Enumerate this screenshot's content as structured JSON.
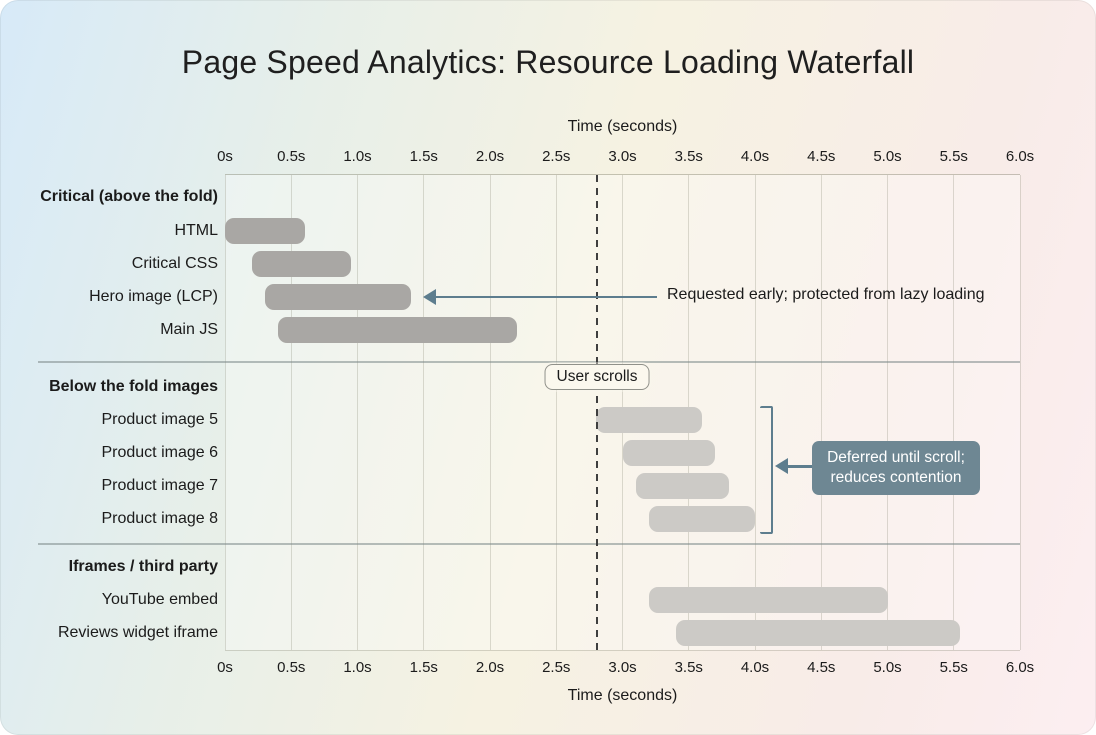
{
  "title": "Page Speed Analytics: Resource Loading Waterfall",
  "axis": {
    "label": "Time (seconds)",
    "min": 0,
    "max": 6,
    "step": 0.5,
    "ticks": [
      "0s",
      "0.5s",
      "1.0s",
      "1.5s",
      "2.0s",
      "2.5s",
      "3.0s",
      "3.5s",
      "4.0s",
      "4.5s",
      "5.0s",
      "5.5s",
      "6.0s"
    ]
  },
  "annotations": {
    "hero": "Requested early; protected from lazy loading",
    "user_scrolls": "User scrolls",
    "deferred_line1": "Deferred until scroll;",
    "deferred_line2": "reduces contention",
    "scroll_time_s": 2.8
  },
  "colors": {
    "critical_bar": "#a9a7a4",
    "deferred_bar": "#cccac6",
    "accent": "#5d7d8e",
    "callout_bg": "#6e8793",
    "dashed_line": "#3f3f3f"
  },
  "chart_data": {
    "type": "bar",
    "subtype": "gantt-waterfall",
    "title": "Page Speed Analytics: Resource Loading Waterfall",
    "xlabel": "Time (seconds)",
    "xlim": [
      0,
      6
    ],
    "grid": true,
    "sections": [
      {
        "label": "Critical (above the fold)",
        "bar_color": "#a9a7a4",
        "rows": [
          {
            "label": "HTML",
            "start": 0.0,
            "end": 0.6
          },
          {
            "label": "Critical CSS",
            "start": 0.2,
            "end": 0.95
          },
          {
            "label": "Hero image (LCP)",
            "start": 0.3,
            "end": 1.4
          },
          {
            "label": "Main JS",
            "start": 0.4,
            "end": 2.2
          }
        ]
      },
      {
        "label": "Below the fold images",
        "bar_color": "#cccac6",
        "rows": [
          {
            "label": "Product image 5",
            "start": 2.8,
            "end": 3.6
          },
          {
            "label": "Product image 6",
            "start": 3.0,
            "end": 3.7
          },
          {
            "label": "Product image 7",
            "start": 3.1,
            "end": 3.8
          },
          {
            "label": "Product image 8",
            "start": 3.2,
            "end": 4.0
          }
        ]
      },
      {
        "label": "Iframes / third party",
        "bar_color": "#cccac6",
        "rows": [
          {
            "label": "YouTube embed",
            "start": 3.2,
            "end": 5.0
          },
          {
            "label": "Reviews widget iframe",
            "start": 3.4,
            "end": 5.55
          }
        ]
      }
    ]
  }
}
